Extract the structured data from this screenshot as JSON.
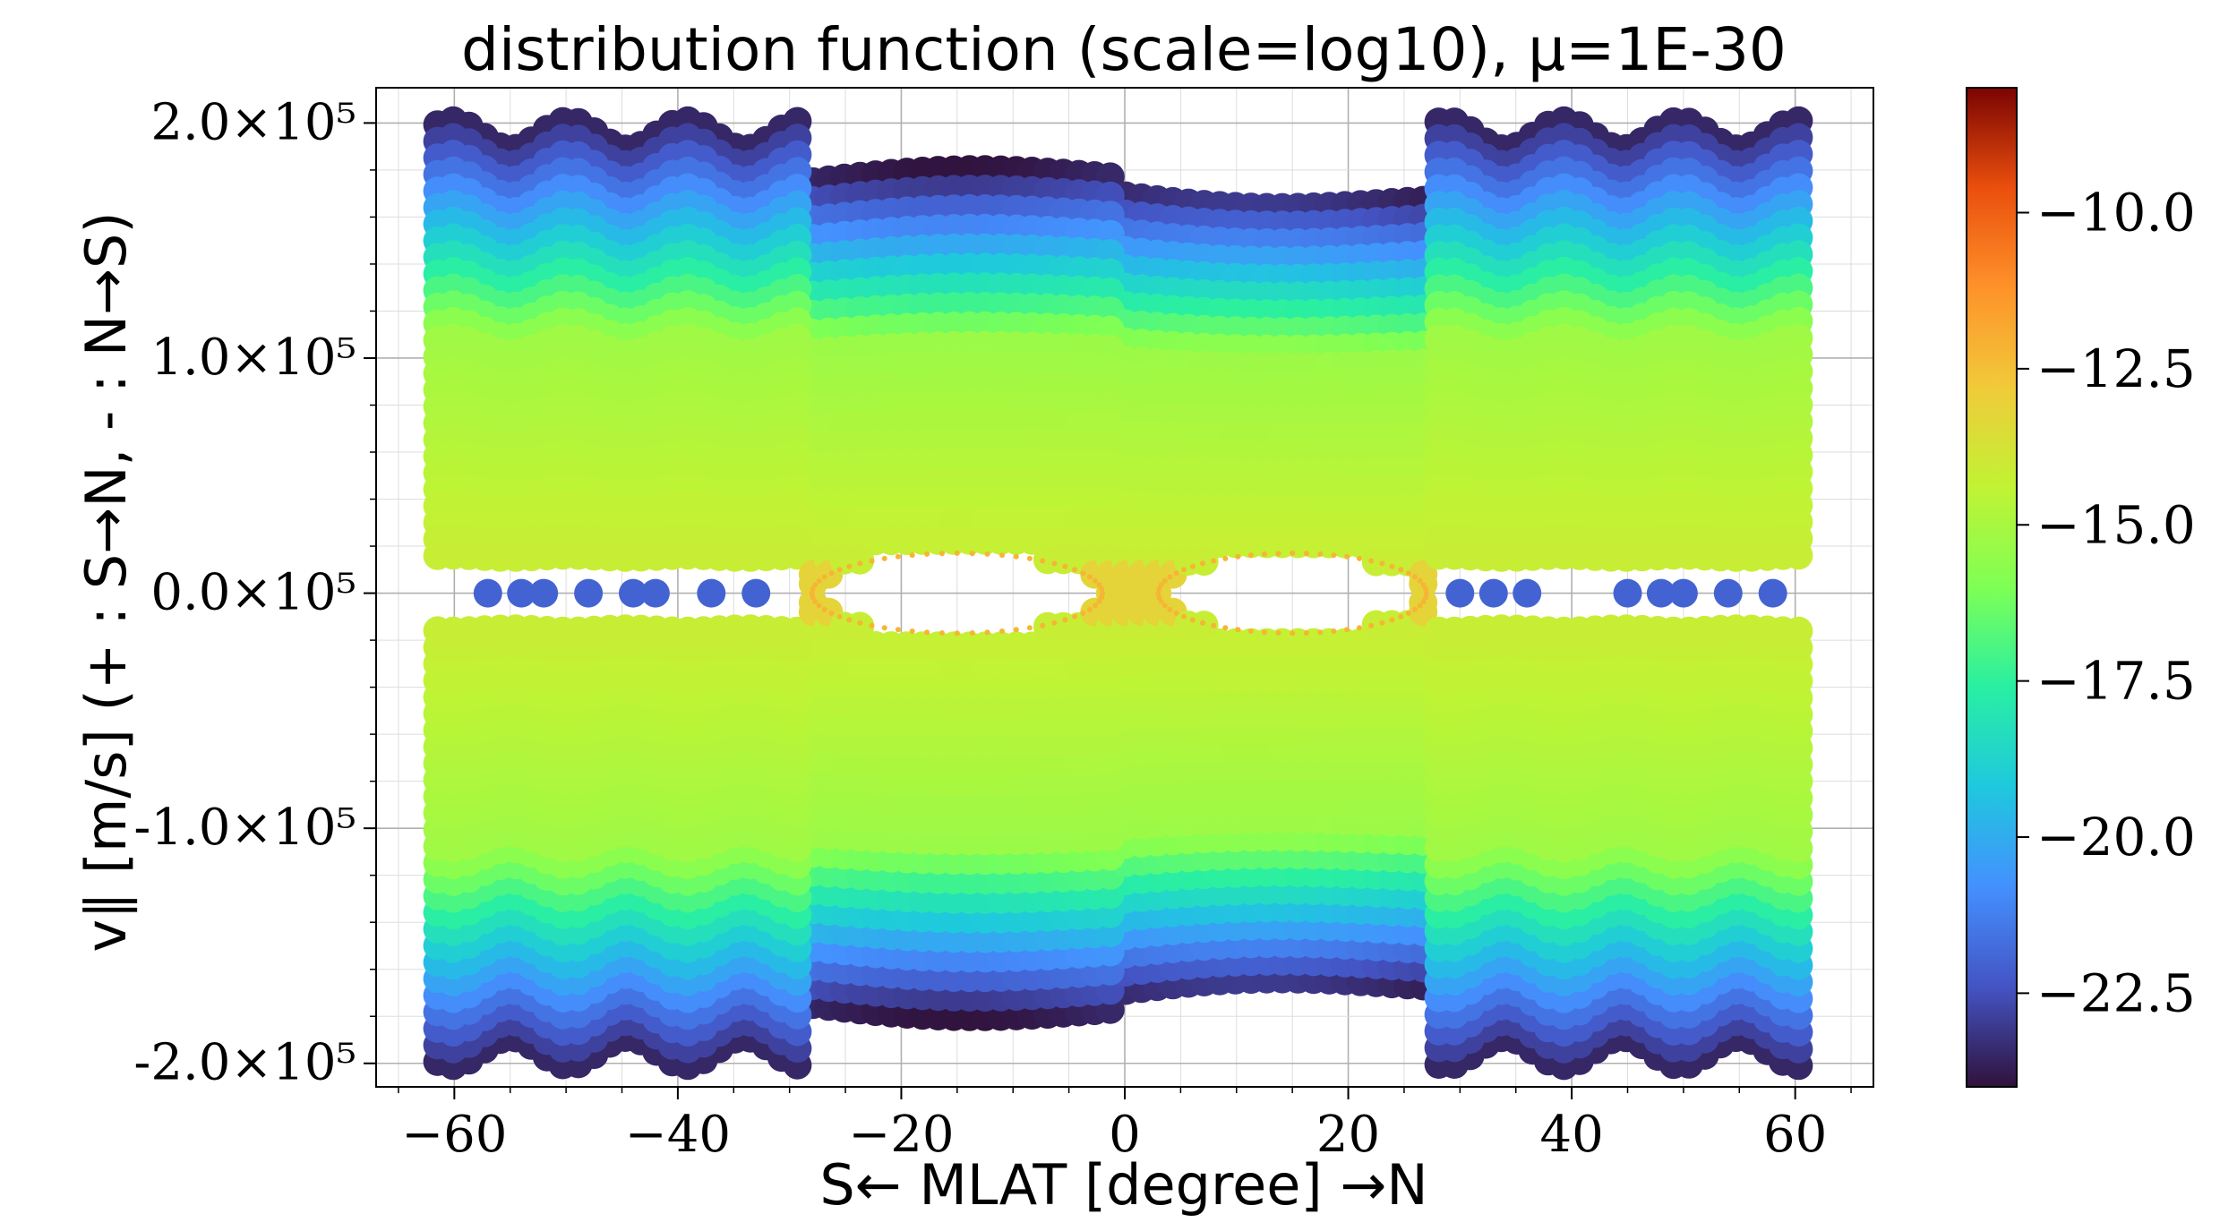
{
  "chart_data": {
    "type": "scatter",
    "title": "distribution function (scale=log10), μ=1E-30",
    "xlabel": "S← MLAT [degree] →N",
    "ylabel": "v∥ [m/s] (+ : S→N, - : N→S)",
    "xlim": [
      -67,
      67
    ],
    "ylim": [
      -210000,
      215000
    ],
    "xticks": [
      -60,
      -40,
      -20,
      0,
      20,
      40,
      60
    ],
    "xtick_labels": [
      "−60",
      "−40",
      "−20",
      "0",
      "20",
      "40",
      "60"
    ],
    "yticks": [
      -200000,
      -100000,
      0,
      100000,
      200000
    ],
    "ytick_labels": [
      "-2.0×10⁵",
      "-1.0×10⁵",
      "0.0×10⁵",
      "1.0×10⁵",
      "2.0×10⁵"
    ],
    "grid": true,
    "colorbar": {
      "range": [
        -24.0,
        -8.0
      ],
      "ticks": [
        -10.0,
        -12.5,
        -15.0,
        -17.5,
        -20.0,
        -22.5
      ],
      "tick_labels": [
        "−10.0",
        "−12.5",
        "−15.0",
        "−17.5",
        "−20.0",
        "−22.5"
      ],
      "colormap": "turbo"
    },
    "series": [
      {
        "values_note_free": true,
        "stripes_vmax": 195000,
        "inner_boundary_vmax": 175000,
        "central_boundary_vmax": 170000,
        "break_mlat": [
          -28,
          0,
          27
        ],
        "holes": [
          {
            "x_center": -15,
            "half_width": 13,
            "v_half_height": 17000
          },
          {
            "x_center": 15,
            "half_width": 12,
            "v_half_height": 17000
          }
        ],
        "zero_points_x": [
          -57,
          -54,
          -52,
          -48,
          -44,
          -42,
          -37,
          -33,
          30,
          33,
          36,
          45,
          48,
          50,
          54,
          58
        ],
        "zero_points_value": -22.0,
        "core_value": -14.0,
        "edge_value": -23.5
      }
    ]
  }
}
